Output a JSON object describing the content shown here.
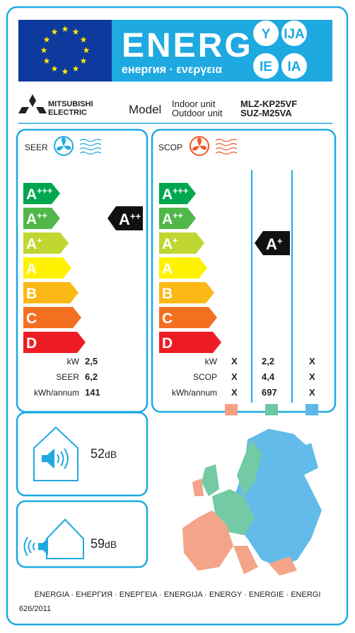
{
  "header": {
    "title": "ENERG",
    "subtitle": "енергия · ενεργεια",
    "suffixes": [
      "Y",
      "IJA",
      "IE",
      "IA"
    ]
  },
  "brand": [
    "MITSUBISHI",
    "ELECTRIC"
  ],
  "model": {
    "label": "Model",
    "indoor_label": "Indoor unit",
    "outdoor_label": "Outdoor unit",
    "indoor": "MLZ-KP25VF",
    "outdoor": "SUZ-M25VA"
  },
  "classes": [
    {
      "letter": "A",
      "sup": "+++",
      "color": "#00a650"
    },
    {
      "letter": "A",
      "sup": "++",
      "color": "#50b848"
    },
    {
      "letter": "A",
      "sup": "+",
      "color": "#bfd730"
    },
    {
      "letter": "A",
      "sup": "",
      "color": "#fff200"
    },
    {
      "letter": "B",
      "sup": "",
      "color": "#fcb814"
    },
    {
      "letter": "C",
      "sup": "",
      "color": "#f37021"
    },
    {
      "letter": "D",
      "sup": "",
      "color": "#ed1c24"
    }
  ],
  "cooling": {
    "label": "SEER",
    "rating": {
      "letter": "A",
      "sup": "++"
    },
    "rows": [
      [
        "kW",
        "2,5"
      ],
      [
        "SEER",
        "6,2"
      ],
      [
        "kWh/annum",
        "141"
      ]
    ]
  },
  "heating": {
    "label": "SCOP",
    "rating": {
      "letter": "A",
      "sup": "+"
    },
    "rows": [
      [
        "kW",
        "X",
        "2,2",
        "X"
      ],
      [
        "SCOP",
        "X",
        "4,4",
        "X"
      ],
      [
        "kWh/annum",
        "X",
        "697",
        "X"
      ]
    ],
    "zone_colors": [
      "#f4a183",
      "#6cc8a0",
      "#5bb8e8"
    ]
  },
  "noise": [
    {
      "value": "52",
      "unit": "dB"
    },
    {
      "value": "59",
      "unit": "dB"
    }
  ],
  "footer": {
    "languages": "ENERGIA · ЕНЕРГИЯ · ΕΝΕΡΓΕΙΑ · ENERGIJA · ENERGY · ENERGIE · ENERGI",
    "regulation": "626/2011"
  }
}
